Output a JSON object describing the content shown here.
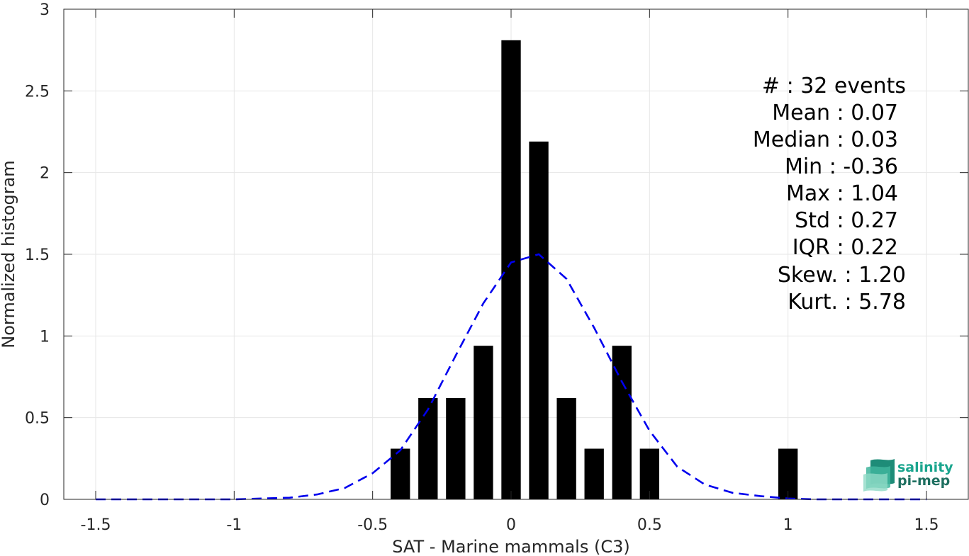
{
  "chart_data": {
    "type": "bar",
    "xlabel": "SAT - Marine mammals (C3)",
    "ylabel": "Normalized histogram",
    "xlim": [
      -1.5,
      1.5
    ],
    "ylim": [
      0,
      3
    ],
    "xticks": [
      -1.5,
      -1,
      -0.5,
      0,
      0.5,
      1,
      1.5
    ],
    "xtick_labels": [
      "-1.5",
      "-1",
      "-0.5",
      "0",
      "0.5",
      "1",
      "1.5"
    ],
    "yticks": [
      0,
      0.5,
      1,
      1.5,
      2,
      2.5,
      3
    ],
    "ytick_labels": [
      "0",
      "0.5",
      "1",
      "1.5",
      "2",
      "2.5",
      "3"
    ],
    "grid": true,
    "bar_width": 0.07,
    "bars": [
      {
        "x": -0.4,
        "y": 0.31
      },
      {
        "x": -0.3,
        "y": 0.62
      },
      {
        "x": -0.2,
        "y": 0.62
      },
      {
        "x": -0.1,
        "y": 0.94
      },
      {
        "x": 0.0,
        "y": 2.81
      },
      {
        "x": 0.1,
        "y": 2.19
      },
      {
        "x": 0.2,
        "y": 0.62
      },
      {
        "x": 0.3,
        "y": 0.31
      },
      {
        "x": 0.4,
        "y": 0.94
      },
      {
        "x": 0.5,
        "y": 0.31
      },
      {
        "x": 1.0,
        "y": 0.31
      }
    ],
    "bar_color": "#000000",
    "fit_curve": {
      "style": "dashed",
      "color": "#0000ee",
      "x": [
        -1.5,
        -1.4,
        -1.3,
        -1.2,
        -1.1,
        -1.0,
        -0.9,
        -0.8,
        -0.7,
        -0.6,
        -0.5,
        -0.4,
        -0.3,
        -0.2,
        -0.1,
        0.0,
        0.1,
        0.2,
        0.3,
        0.4,
        0.5,
        0.6,
        0.7,
        0.8,
        0.9,
        1.0,
        1.1,
        1.2,
        1.3,
        1.4,
        1.5
      ],
      "y": [
        0.0,
        0.0,
        0.0,
        0.0,
        0.0,
        0.0,
        0.005,
        0.01,
        0.03,
        0.07,
        0.16,
        0.3,
        0.55,
        0.88,
        1.2,
        1.45,
        1.5,
        1.35,
        1.05,
        0.72,
        0.42,
        0.2,
        0.09,
        0.04,
        0.02,
        0.005,
        0.0,
        0.0,
        0.0,
        0.0,
        0.0
      ]
    },
    "annotations": [
      "#  : 32 events",
      "Mean : 0.07",
      "Median : 0.03",
      "Min : -0.36",
      "Max : 1.04",
      "Std : 0.27",
      "IQR : 0.22",
      "Skew. : 1.20",
      "Kurt. : 5.78"
    ]
  },
  "logo": {
    "line1": "salinity",
    "line2": "pi-mep",
    "color": "#1aa58e"
  }
}
